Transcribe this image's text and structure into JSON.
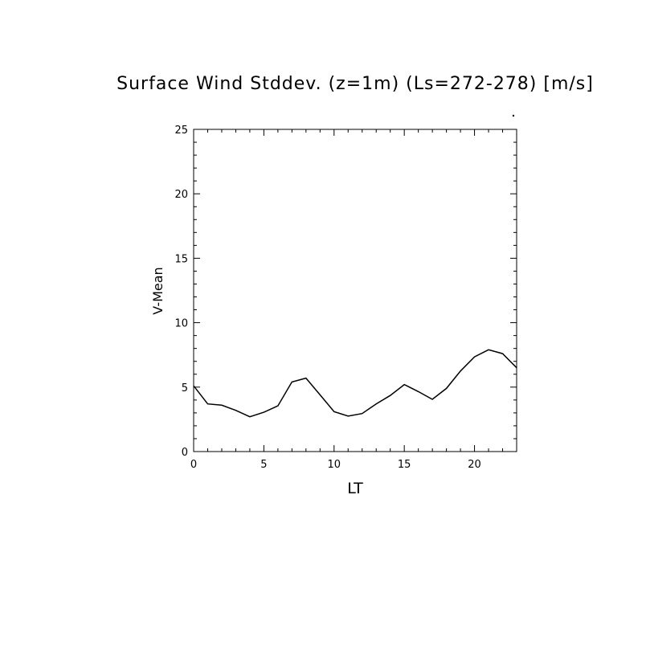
{
  "chart_data": {
    "type": "line",
    "title": "Surface Wind Stddev. (z=1m) (Ls=272-278) [m/s]",
    "xlabel": "LT",
    "ylabel": "V-Mean",
    "xlim": [
      0,
      23
    ],
    "ylim": [
      0,
      25
    ],
    "xticks": [
      0,
      5,
      10,
      15,
      20
    ],
    "yticks": [
      0,
      5,
      10,
      15,
      20,
      25
    ],
    "grid": false,
    "series": [
      {
        "x": [
          0,
          1,
          2,
          3,
          4,
          5,
          6,
          7,
          8,
          9,
          10,
          11,
          12,
          13,
          14,
          15,
          16,
          17,
          18,
          19,
          20,
          21,
          22,
          23
        ],
        "values": [
          5.1,
          3.7,
          3.6,
          3.2,
          2.7,
          3.05,
          3.55,
          5.4,
          5.7,
          4.4,
          3.1,
          2.75,
          2.95,
          3.7,
          4.35,
          5.2,
          4.65,
          4.05,
          4.9,
          6.25,
          7.35,
          7.9,
          7.6,
          6.5
        ],
        "color": "#000000"
      }
    ]
  }
}
